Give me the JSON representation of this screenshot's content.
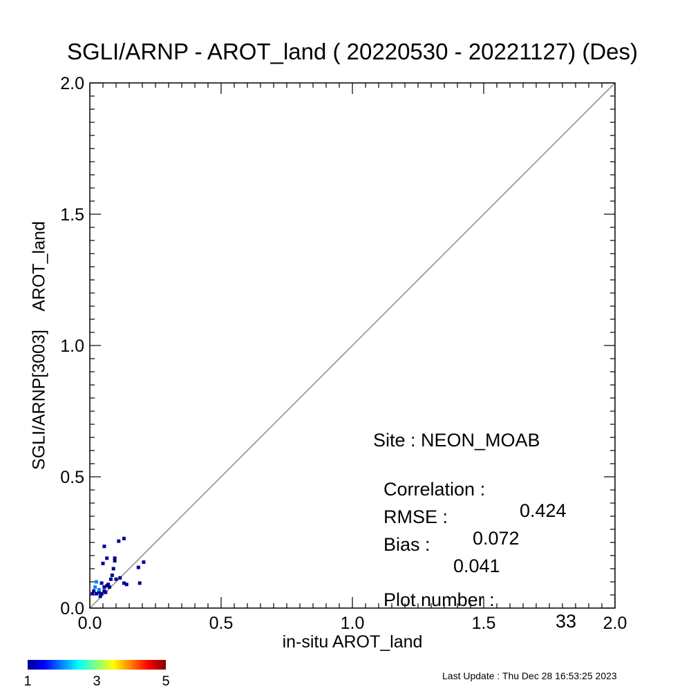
{
  "chart_data": {
    "type": "scatter",
    "title": "SGLI/ARNP - AROT_land ( 20220530 - 20221127) (Des)",
    "xlabel": "in-situ AROT_land",
    "ylabel": "SGLI/ARNP[3003]    AROT_land",
    "xlim": [
      0.0,
      2.0
    ],
    "ylim": [
      0.0,
      2.0
    ],
    "xticks": [
      "0.0",
      "0.5",
      "1.0",
      "1.5",
      "2.0"
    ],
    "yticks": [
      "0.0",
      "0.5",
      "1.0",
      "1.5",
      "2.0"
    ],
    "one_to_one_line": true,
    "grid": false,
    "points": [
      {
        "x": 0.015,
        "y": 0.065,
        "count": 1
      },
      {
        "x": 0.025,
        "y": 0.055,
        "count": 1
      },
      {
        "x": 0.035,
        "y": 0.06,
        "count": 1
      },
      {
        "x": 0.045,
        "y": 0.055,
        "count": 1
      },
      {
        "x": 0.055,
        "y": 0.065,
        "count": 1
      },
      {
        "x": 0.02,
        "y": 0.08,
        "count": 2
      },
      {
        "x": 0.035,
        "y": 0.07,
        "count": 2
      },
      {
        "x": 0.01,
        "y": 0.055,
        "count": 1
      },
      {
        "x": 0.025,
        "y": 0.1,
        "count": 2
      },
      {
        "x": 0.045,
        "y": 0.095,
        "count": 1
      },
      {
        "x": 0.055,
        "y": 0.08,
        "count": 1
      },
      {
        "x": 0.065,
        "y": 0.085,
        "count": 1
      },
      {
        "x": 0.06,
        "y": 0.06,
        "count": 1
      },
      {
        "x": 0.075,
        "y": 0.08,
        "count": 1
      },
      {
        "x": 0.085,
        "y": 0.125,
        "count": 1
      },
      {
        "x": 0.09,
        "y": 0.15,
        "count": 1
      },
      {
        "x": 0.08,
        "y": 0.11,
        "count": 1
      },
      {
        "x": 0.095,
        "y": 0.18,
        "count": 1
      },
      {
        "x": 0.1,
        "y": 0.11,
        "count": 1
      },
      {
        "x": 0.115,
        "y": 0.115,
        "count": 1
      },
      {
        "x": 0.13,
        "y": 0.095,
        "count": 1
      },
      {
        "x": 0.05,
        "y": 0.17,
        "count": 1
      },
      {
        "x": 0.065,
        "y": 0.19,
        "count": 1
      },
      {
        "x": 0.095,
        "y": 0.19,
        "count": 1
      },
      {
        "x": 0.055,
        "y": 0.235,
        "count": 1
      },
      {
        "x": 0.11,
        "y": 0.255,
        "count": 1
      },
      {
        "x": 0.13,
        "y": 0.265,
        "count": 1
      },
      {
        "x": 0.185,
        "y": 0.155,
        "count": 1
      },
      {
        "x": 0.205,
        "y": 0.175,
        "count": 1
      },
      {
        "x": 0.19,
        "y": 0.095,
        "count": 1
      },
      {
        "x": 0.14,
        "y": 0.09,
        "count": 1
      },
      {
        "x": 0.07,
        "y": 0.09,
        "count": 1
      },
      {
        "x": 0.04,
        "y": 0.045,
        "count": 1
      }
    ],
    "colorbar": {
      "ticks": [
        "1",
        "3",
        "5"
      ],
      "min": 1,
      "max": 5,
      "colormap": [
        "#00008f",
        "#0000ff",
        "#00ffff",
        "#ffff00",
        "#ff0000",
        "#800000"
      ]
    }
  },
  "stats": {
    "site_label": "Site : NEON_MOAB",
    "correlation_label": "Correlation :",
    "correlation_value": "0.424",
    "rmse_label": "RMSE :",
    "rmse_value": "0.072",
    "bias_label": "Bias :",
    "bias_value": "0.041",
    "plot_number_label": "Plot number :",
    "plot_number_value": "33"
  },
  "last_update": "Last Update : Thu Dec 28 16:53:25 2023",
  "colors": {
    "axis": "#000000",
    "diagonal": "#888888"
  }
}
